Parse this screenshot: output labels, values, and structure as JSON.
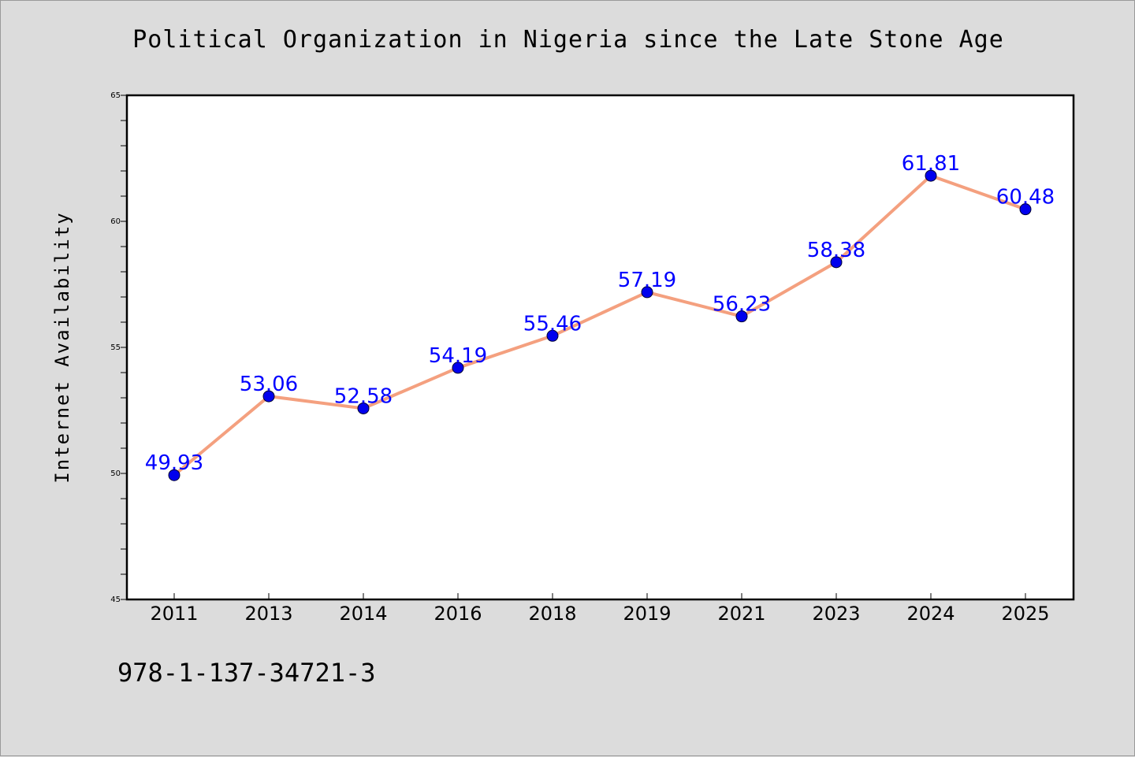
{
  "chart_data": {
    "type": "line",
    "title": "Political Organization in Nigeria since the Late Stone Age",
    "xlabel": "",
    "ylabel": "Internet Availability",
    "categories": [
      "2011",
      "2013",
      "2014",
      "2016",
      "2018",
      "2019",
      "2021",
      "2023",
      "2024",
      "2025"
    ],
    "series": [
      {
        "values": [
          49.93,
          53.06,
          52.58,
          54.19,
          55.46,
          57.19,
          56.23,
          58.38,
          61.81,
          60.48
        ],
        "labels": [
          "49.93",
          "53.06",
          "52.58",
          "54.19",
          "55.46",
          "57.19",
          "56.23",
          "58.38",
          "61.81",
          "60.48"
        ],
        "line_color": "#f4a07f",
        "marker_color": "#0000ee"
      }
    ],
    "ylim": [
      45,
      65
    ],
    "y_ticks": [
      45,
      50,
      55,
      60,
      65
    ],
    "y_tick_labels": [
      "45",
      "50",
      "55",
      "60",
      "65"
    ],
    "grid": false,
    "legend": "none",
    "label_color": "#0000ff",
    "background_color": "#dcdcdc",
    "plot_background": "#ffffff"
  },
  "footer": {
    "isbn": "978-1-137-34721-3"
  }
}
